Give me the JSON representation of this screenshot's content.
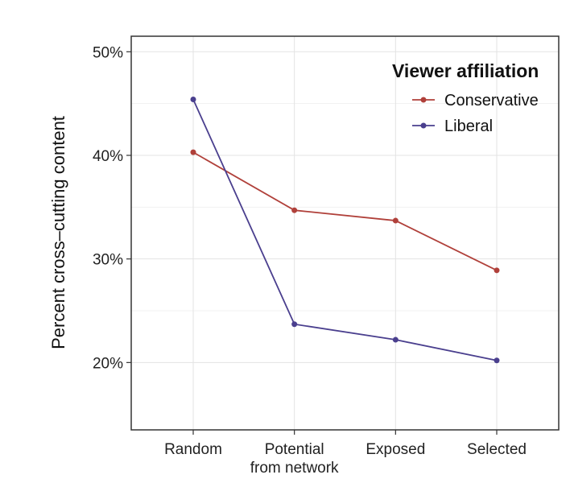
{
  "chart_data": {
    "type": "line",
    "categories": [
      [
        "Random"
      ],
      [
        "Potential",
        "from network"
      ],
      [
        "Exposed"
      ],
      [
        "Selected"
      ]
    ],
    "ylabel": "Percent cross–cutting content",
    "y_ticks": [
      "20%",
      "30%",
      "40%",
      "50%"
    ],
    "ylim": [
      0.135,
      0.515
    ],
    "grid": true,
    "legend": {
      "title": "Viewer affiliation",
      "position": "top-right"
    },
    "series": [
      {
        "name": "Conservative",
        "color": "#b0403a",
        "values": [
          0.403,
          0.347,
          0.337,
          0.289
        ]
      },
      {
        "name": "Liberal",
        "color": "#4a3f8e",
        "values": [
          0.454,
          0.237,
          0.222,
          0.202
        ]
      }
    ]
  }
}
